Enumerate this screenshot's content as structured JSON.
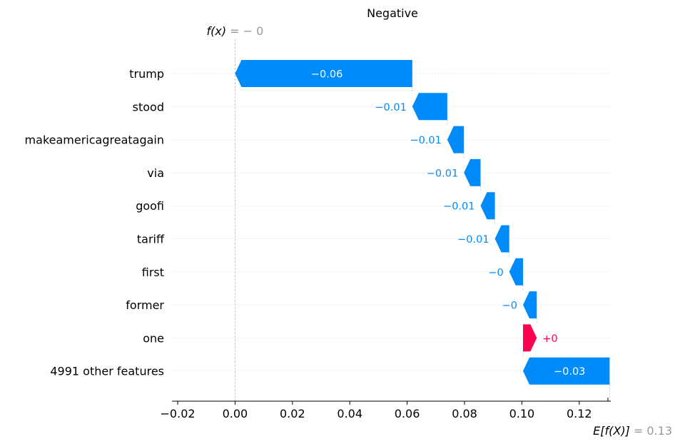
{
  "chart_data": {
    "type": "waterfall",
    "title": "Negative",
    "fx_label": "f(x)",
    "fx_value_text": "= − 0",
    "fx_value": 0.0,
    "ex_label": "E[f(X)]",
    "ex_value_text": "= 0.13",
    "ex_value": 0.13,
    "xlim": [
      -0.022,
      0.131
    ],
    "xticks": [
      -0.02,
      0.0,
      0.02,
      0.04,
      0.06,
      0.08,
      0.1,
      0.12
    ],
    "xtick_labels": [
      "−0.02",
      "0.00",
      "0.02",
      "0.04",
      "0.06",
      "0.08",
      "0.10",
      "0.12"
    ],
    "grid": true,
    "colors": {
      "negative": "#008bfb",
      "positive": "#ff0051",
      "grid": "#cccccc"
    },
    "features": [
      {
        "name": "trump",
        "start": 0.0618,
        "end": 0.0,
        "label": "−0.06",
        "label_inside": true
      },
      {
        "name": "stood",
        "start": 0.074,
        "end": 0.0618,
        "label": "−0.01",
        "label_inside": false
      },
      {
        "name": "makeamericagreatagain",
        "start": 0.0798,
        "end": 0.074,
        "label": "−0.01",
        "label_inside": false
      },
      {
        "name": "via",
        "start": 0.0856,
        "end": 0.0798,
        "label": "−0.01",
        "label_inside": false
      },
      {
        "name": "goofi",
        "start": 0.0906,
        "end": 0.0856,
        "label": "−0.01",
        "label_inside": false
      },
      {
        "name": "tariff",
        "start": 0.0956,
        "end": 0.0906,
        "label": "−0.01",
        "label_inside": false
      },
      {
        "name": "first",
        "start": 0.1004,
        "end": 0.0956,
        "label": "−0",
        "label_inside": false
      },
      {
        "name": "former",
        "start": 0.1052,
        "end": 0.1004,
        "label": "−0",
        "label_inside": false
      },
      {
        "name": "one",
        "start": 0.1004,
        "end": 0.1052,
        "label": "+0",
        "label_inside": false
      },
      {
        "name": "4991 other features",
        "start": 0.1306,
        "end": 0.1004,
        "label": "−0.03",
        "label_inside": true
      }
    ]
  }
}
